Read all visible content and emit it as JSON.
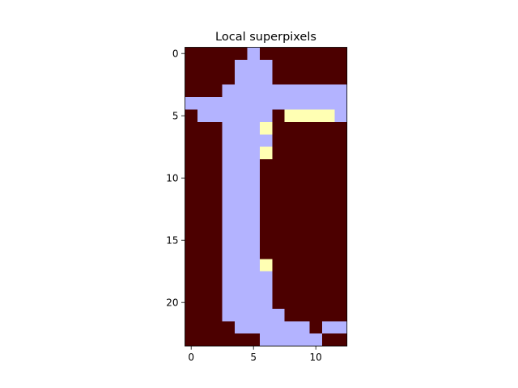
{
  "chart_data": {
    "type": "heatmap",
    "title": "Local superpixels",
    "xlabel": "",
    "ylabel": "",
    "rows": 24,
    "cols": 13,
    "x_ticks": [
      0,
      5,
      10
    ],
    "y_ticks": [
      0,
      5,
      10,
      15,
      20
    ],
    "xlim": [
      -0.5,
      12.5
    ],
    "ylim": [
      23.5,
      -0.5
    ],
    "grid": false,
    "legend": "none",
    "colors": {
      "0": "#4c0000",
      "1": "#b3b3ff",
      "2": "#ffffb3"
    },
    "segments": [
      {
        "value": 1,
        "cells": [
          [
            0,
            5
          ],
          [
            1,
            4
          ],
          [
            1,
            5
          ],
          [
            1,
            6
          ],
          [
            2,
            4
          ],
          [
            2,
            5
          ],
          [
            2,
            6
          ],
          [
            3,
            3
          ],
          [
            3,
            4
          ],
          [
            3,
            5
          ],
          [
            3,
            6
          ],
          [
            3,
            7
          ],
          [
            3,
            8
          ],
          [
            3,
            9
          ],
          [
            3,
            10
          ],
          [
            3,
            11
          ],
          [
            3,
            12
          ],
          [
            4,
            0
          ],
          [
            4,
            1
          ],
          [
            4,
            2
          ],
          [
            4,
            3
          ],
          [
            4,
            4
          ],
          [
            4,
            5
          ],
          [
            4,
            6
          ],
          [
            4,
            7
          ],
          [
            4,
            8
          ],
          [
            4,
            9
          ],
          [
            4,
            10
          ],
          [
            4,
            11
          ],
          [
            4,
            12
          ],
          [
            5,
            1
          ],
          [
            5,
            2
          ],
          [
            5,
            3
          ],
          [
            5,
            4
          ],
          [
            5,
            5
          ],
          [
            5,
            6
          ],
          [
            5,
            12
          ],
          [
            6,
            3
          ],
          [
            6,
            4
          ],
          [
            6,
            5
          ],
          [
            7,
            3
          ],
          [
            7,
            4
          ],
          [
            7,
            5
          ],
          [
            7,
            6
          ],
          [
            8,
            3
          ],
          [
            8,
            4
          ],
          [
            8,
            5
          ],
          [
            9,
            3
          ],
          [
            9,
            4
          ],
          [
            9,
            5
          ],
          [
            10,
            3
          ],
          [
            10,
            4
          ],
          [
            10,
            5
          ],
          [
            11,
            3
          ],
          [
            11,
            4
          ],
          [
            11,
            5
          ],
          [
            12,
            3
          ],
          [
            12,
            4
          ],
          [
            12,
            5
          ],
          [
            13,
            3
          ],
          [
            13,
            4
          ],
          [
            13,
            5
          ],
          [
            14,
            3
          ],
          [
            14,
            4
          ],
          [
            14,
            5
          ],
          [
            15,
            3
          ],
          [
            15,
            4
          ],
          [
            15,
            5
          ],
          [
            16,
            3
          ],
          [
            16,
            4
          ],
          [
            16,
            5
          ],
          [
            17,
            3
          ],
          [
            17,
            4
          ],
          [
            17,
            5
          ],
          [
            18,
            3
          ],
          [
            18,
            4
          ],
          [
            18,
            5
          ],
          [
            18,
            6
          ],
          [
            19,
            3
          ],
          [
            19,
            4
          ],
          [
            19,
            5
          ],
          [
            19,
            6
          ],
          [
            20,
            3
          ],
          [
            20,
            4
          ],
          [
            20,
            5
          ],
          [
            20,
            6
          ],
          [
            21,
            3
          ],
          [
            21,
            4
          ],
          [
            21,
            5
          ],
          [
            21,
            6
          ],
          [
            21,
            7
          ],
          [
            22,
            4
          ],
          [
            22,
            5
          ],
          [
            22,
            6
          ],
          [
            22,
            7
          ],
          [
            22,
            8
          ],
          [
            22,
            9
          ],
          [
            22,
            11
          ],
          [
            22,
            12
          ],
          [
            23,
            6
          ],
          [
            23,
            7
          ],
          [
            23,
            8
          ],
          [
            23,
            9
          ],
          [
            23,
            10
          ]
        ]
      },
      {
        "value": 2,
        "cells": [
          [
            5,
            8
          ],
          [
            5,
            9
          ],
          [
            5,
            10
          ],
          [
            5,
            11
          ],
          [
            6,
            6
          ],
          [
            8,
            6
          ],
          [
            17,
            6
          ]
        ]
      }
    ]
  }
}
